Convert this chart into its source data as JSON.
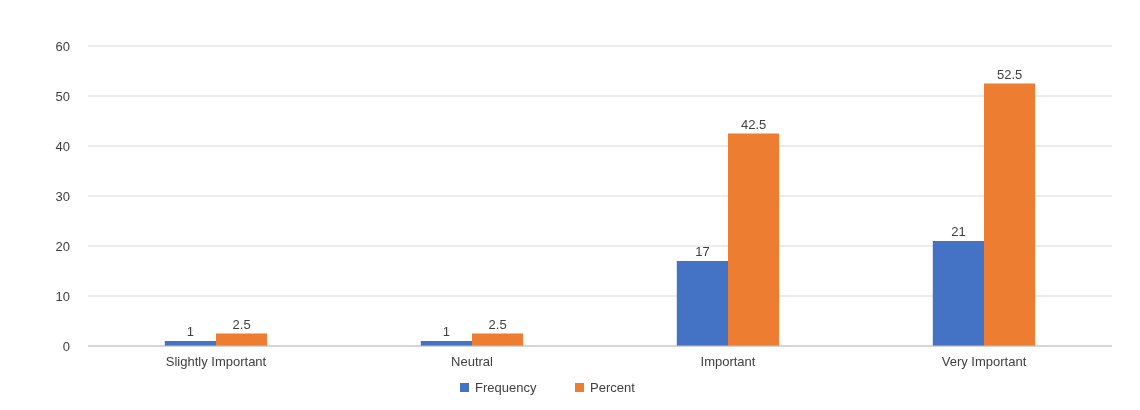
{
  "chart_data": {
    "type": "bar",
    "categories": [
      "Slightly Important",
      "Neutral",
      "Important",
      "Very Important"
    ],
    "series": [
      {
        "name": "Frequency",
        "color": "#4472c4",
        "values": [
          1,
          1,
          17,
          21
        ]
      },
      {
        "name": "Percent",
        "color": "#ed7d31",
        "values": [
          2.5,
          2.5,
          42.5,
          52.5
        ]
      }
    ],
    "ylim": [
      0,
      60
    ],
    "yticks": [
      0,
      10,
      20,
      30,
      40,
      50,
      60
    ],
    "grid": "y",
    "legend": "bottom",
    "data_labels": true
  }
}
